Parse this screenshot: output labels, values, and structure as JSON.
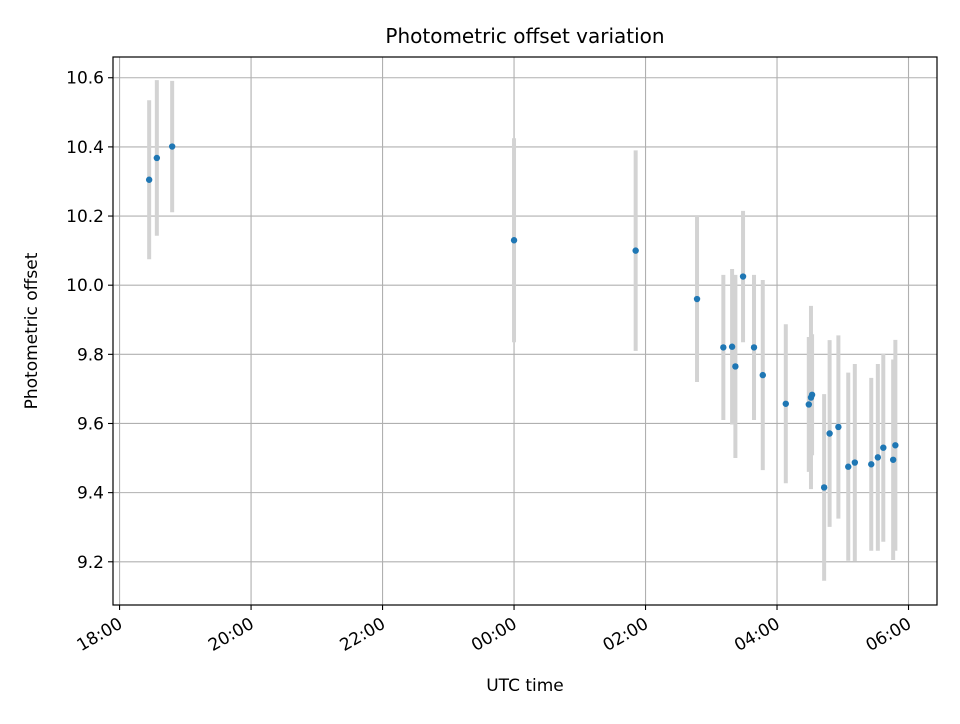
{
  "chart_data": {
    "type": "scatter",
    "title": "Photometric offset variation",
    "xlabel": "UTC time",
    "ylabel": "Photometric offset",
    "x_tick_labels": [
      "18:00",
      "20:00",
      "22:00",
      "00:00",
      "02:00",
      "04:00",
      "06:00"
    ],
    "y_tick_labels": [
      "9.2",
      "9.4",
      "9.6",
      "9.8",
      "10.0",
      "10.2",
      "10.4",
      "10.6"
    ],
    "y_ticks": [
      9.2,
      9.4,
      9.6,
      9.8,
      10.0,
      10.2,
      10.4,
      10.6
    ],
    "xlim": [
      "17:54",
      "06:26"
    ],
    "ylim": [
      9.075,
      10.66
    ],
    "grid": true,
    "marker_color": "#1f77b4",
    "errorbar_color": "#d3d3d3",
    "points": [
      {
        "time": "18:27",
        "y": 10.305,
        "err": 0.23
      },
      {
        "time": "18:34",
        "y": 10.368,
        "err": 0.225
      },
      {
        "time": "18:48",
        "y": 10.401,
        "err": 0.19
      },
      {
        "time": "00:00",
        "y": 10.13,
        "err": 0.295
      },
      {
        "time": "01:51",
        "y": 10.1,
        "err": 0.29
      },
      {
        "time": "02:47",
        "y": 9.96,
        "err": 0.24
      },
      {
        "time": "03:11",
        "y": 9.82,
        "err": 0.21
      },
      {
        "time": "03:19",
        "y": 9.822,
        "err": 0.225
      },
      {
        "time": "03:22",
        "y": 9.765,
        "err": 0.265
      },
      {
        "time": "03:29",
        "y": 10.025,
        "err": 0.19
      },
      {
        "time": "03:39",
        "y": 9.82,
        "err": 0.21
      },
      {
        "time": "03:47",
        "y": 9.74,
        "err": 0.275
      },
      {
        "time": "04:08",
        "y": 9.657,
        "err": 0.23
      },
      {
        "time": "04:29",
        "y": 9.655,
        "err": 0.195
      },
      {
        "time": "04:31",
        "y": 9.675,
        "err": 0.265
      },
      {
        "time": "04:32",
        "y": 9.683,
        "err": 0.175
      },
      {
        "time": "04:43",
        "y": 9.415,
        "err": 0.27
      },
      {
        "time": "04:48",
        "y": 9.571,
        "err": 0.27
      },
      {
        "time": "04:56",
        "y": 9.59,
        "err": 0.265
      },
      {
        "time": "05:05",
        "y": 9.475,
        "err": 0.272
      },
      {
        "time": "05:11",
        "y": 9.487,
        "err": 0.285
      },
      {
        "time": "05:26",
        "y": 9.482,
        "err": 0.25
      },
      {
        "time": "05:32",
        "y": 9.502,
        "err": 0.27
      },
      {
        "time": "05:37",
        "y": 9.53,
        "err": 0.272
      },
      {
        "time": "05:46",
        "y": 9.495,
        "err": 0.29
      },
      {
        "time": "05:48",
        "y": 9.537,
        "err": 0.305
      }
    ]
  }
}
